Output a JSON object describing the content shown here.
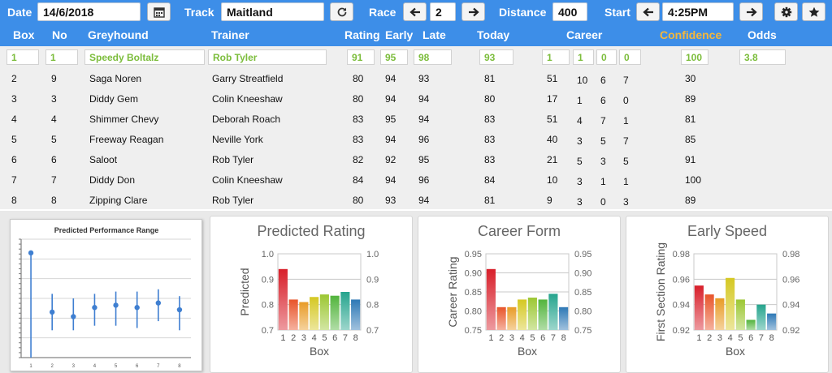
{
  "topbar": {
    "date_label": "Date",
    "date_value": "14/6/2018",
    "calendar_icon": "calendar-icon",
    "track_label": "Track",
    "track_value": "Maitland",
    "refresh_icon": "refresh-icon",
    "race_label": "Race",
    "race_value": "2",
    "prev_icon": "arrow-left-icon",
    "next_icon": "arrow-right-icon",
    "distance_label": "Distance",
    "distance_value": "400",
    "start_label": "Start",
    "start_value": "4:25PM",
    "settings_icon": "gear-icon",
    "favorite_icon": "star-icon"
  },
  "columns": {
    "box": "Box",
    "no": "No",
    "greyhound": "Greyhound",
    "trainer": "Trainer",
    "rating": "Rating",
    "early": "Early",
    "late": "Late",
    "today": "Today",
    "career": "Career",
    "confidence": "Confidence",
    "odds": "Odds"
  },
  "colors": {
    "header_bg": "#3d8ee8",
    "confidence_header": "#f5b73a",
    "selected_text": "#7cbd3c"
  },
  "selected": {
    "box": "1",
    "no": "1",
    "greyhound": "Speedy Boltalz",
    "trainer": "Rob Tyler",
    "rating": "91",
    "early": "95",
    "late": "98",
    "today": "93",
    "career": [
      "1",
      "1",
      "0",
      "0"
    ],
    "confidence": "100",
    "odds": "3.8"
  },
  "rows": [
    {
      "box": "2",
      "no": "9",
      "greyhound": "Saga Noren",
      "trainer": "Garry Streatfield",
      "rating": "80",
      "early": "94",
      "late": "93",
      "today": "81",
      "career": [
        "51",
        "10",
        "6",
        "7"
      ],
      "confidence": "30"
    },
    {
      "box": "3",
      "no": "3",
      "greyhound": "Diddy Gem",
      "trainer": "Colin Kneeshaw",
      "rating": "80",
      "early": "94",
      "late": "94",
      "today": "80",
      "career": [
        "17",
        "1",
        "6",
        "0"
      ],
      "confidence": "89"
    },
    {
      "box": "4",
      "no": "4",
      "greyhound": "Shimmer Chevy",
      "trainer": "Deborah Roach",
      "rating": "83",
      "early": "95",
      "late": "94",
      "today": "83",
      "career": [
        "51",
        "4",
        "7",
        "1"
      ],
      "confidence": "81"
    },
    {
      "box": "5",
      "no": "5",
      "greyhound": "Freeway Reagan",
      "trainer": "Neville York",
      "rating": "83",
      "early": "94",
      "late": "96",
      "today": "83",
      "career": [
        "40",
        "3",
        "5",
        "7"
      ],
      "confidence": "85"
    },
    {
      "box": "6",
      "no": "6",
      "greyhound": "Saloot",
      "trainer": "Rob Tyler",
      "rating": "82",
      "early": "92",
      "late": "95",
      "today": "83",
      "career": [
        "21",
        "5",
        "3",
        "5"
      ],
      "confidence": "91"
    },
    {
      "box": "7",
      "no": "7",
      "greyhound": "Diddy Don",
      "trainer": "Colin Kneeshaw",
      "rating": "84",
      "early": "94",
      "late": "96",
      "today": "84",
      "career": [
        "10",
        "3",
        "1",
        "1"
      ],
      "confidence": "100"
    },
    {
      "box": "8",
      "no": "8",
      "greyhound": "Zipping Clare",
      "trainer": "Rob Tyler",
      "rating": "80",
      "early": "93",
      "late": "94",
      "today": "81",
      "career": [
        "9",
        "3",
        "0",
        "3"
      ],
      "confidence": "89"
    }
  ],
  "chart_data": [
    {
      "type": "scatter",
      "title": "Predicted Performance Range",
      "categories": [
        "1",
        "2",
        "3",
        "4",
        "5",
        "6",
        "7",
        "8"
      ],
      "values": [
        0.93,
        0.8,
        0.79,
        0.81,
        0.815,
        0.81,
        0.82,
        0.805
      ],
      "low": [
        0.7,
        0.76,
        0.76,
        0.77,
        0.77,
        0.765,
        0.78,
        0.76
      ],
      "high": [
        0.93,
        0.84,
        0.83,
        0.84,
        0.845,
        0.845,
        0.85,
        0.835
      ],
      "ylim": [
        0.7,
        0.96
      ],
      "grid": true
    },
    {
      "type": "bar",
      "title": "Predicted Rating",
      "ylabel": "Predicted",
      "xlabel": "Box",
      "categories": [
        "1",
        "2",
        "3",
        "4",
        "5",
        "6",
        "7",
        "8"
      ],
      "values": [
        0.94,
        0.82,
        0.81,
        0.83,
        0.84,
        0.835,
        0.85,
        0.82
      ],
      "ylim": [
        0.7,
        1.0
      ],
      "ticks": [
        "1.0",
        "0.9",
        "0.8",
        "0.7"
      ],
      "grid": true
    },
    {
      "type": "bar",
      "title": "Career Form",
      "ylabel": "Career Rating",
      "xlabel": "Box",
      "categories": [
        "1",
        "2",
        "3",
        "4",
        "5",
        "6",
        "7",
        "8"
      ],
      "values": [
        0.91,
        0.81,
        0.81,
        0.83,
        0.835,
        0.83,
        0.845,
        0.81
      ],
      "ylim": [
        0.75,
        0.95
      ],
      "ticks": [
        "0.95",
        "0.90",
        "0.85",
        "0.80",
        "0.75"
      ],
      "grid": true
    },
    {
      "type": "bar",
      "title": "Early Speed",
      "ylabel": "First Section Rating",
      "xlabel": "Box",
      "categories": [
        "1",
        "2",
        "3",
        "4",
        "5",
        "6",
        "7",
        "8"
      ],
      "values": [
        0.955,
        0.948,
        0.945,
        0.961,
        0.944,
        0.928,
        0.94,
        0.933
      ],
      "ylim": [
        0.92,
        0.98
      ],
      "ticks": [
        "0.98",
        "0.96",
        "0.94",
        "0.92"
      ],
      "grid": true
    }
  ]
}
